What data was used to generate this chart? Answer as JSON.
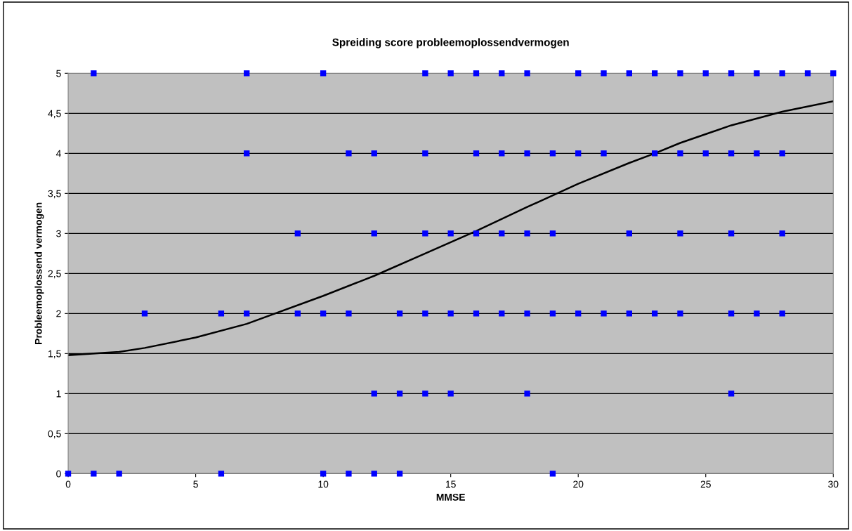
{
  "chart_data": {
    "type": "scatter",
    "title": "Spreiding score probleemoplossendvermogen",
    "xlabel": "MMSE",
    "ylabel": "Probleemoplossend vermogen",
    "xlim": [
      0,
      30
    ],
    "xticks": [
      0,
      5,
      10,
      15,
      20,
      25,
      30
    ],
    "ylim": [
      0,
      5
    ],
    "yticks": [
      0,
      {
        "value": 0.5,
        "label": "0,5"
      },
      1,
      {
        "value": 1.5,
        "label": "1,5"
      },
      2,
      {
        "value": 2.5,
        "label": "2,5"
      },
      3,
      {
        "value": 3.5,
        "label": "3,5"
      },
      4,
      {
        "value": 4.5,
        "label": "4,5"
      },
      5
    ],
    "grid": "y",
    "marker": "square",
    "series": [
      {
        "type": "scatter",
        "color": "#0000ff",
        "x": [
          1,
          7,
          10,
          14,
          15,
          16,
          17,
          18,
          20,
          21,
          22,
          23,
          24,
          25,
          26,
          27,
          28,
          29,
          30,
          7,
          11,
          12,
          14,
          16,
          17,
          18,
          19,
          20,
          21,
          23,
          24,
          25,
          26,
          27,
          28,
          9,
          12,
          14,
          15,
          16,
          17,
          18,
          19,
          22,
          24,
          26,
          28,
          3,
          6,
          7,
          9,
          10,
          11,
          13,
          14,
          15,
          16,
          17,
          18,
          19,
          20,
          21,
          22,
          23,
          24,
          26,
          27,
          28,
          12,
          13,
          14,
          15,
          18,
          26,
          0,
          1,
          2,
          6,
          10,
          11,
          12,
          13,
          19
        ],
        "values": [
          5,
          5,
          5,
          5,
          5,
          5,
          5,
          5,
          5,
          5,
          5,
          5,
          5,
          5,
          5,
          5,
          5,
          5,
          5,
          4,
          4,
          4,
          4,
          4,
          4,
          4,
          4,
          4,
          4,
          4,
          4,
          4,
          4,
          4,
          4,
          3,
          3,
          3,
          3,
          3,
          3,
          3,
          3,
          3,
          3,
          3,
          3,
          2,
          2,
          2,
          2,
          2,
          2,
          2,
          2,
          2,
          2,
          2,
          2,
          2,
          2,
          2,
          2,
          2,
          2,
          2,
          2,
          2,
          1,
          1,
          1,
          1,
          1,
          1,
          0,
          0,
          0,
          0,
          0,
          0,
          0,
          0,
          0
        ]
      },
      {
        "type": "line",
        "color": "#000000",
        "marker": "none",
        "x": [
          0,
          2,
          3,
          5,
          7,
          10,
          12,
          14,
          16,
          18,
          20,
          22,
          23,
          24,
          26,
          28,
          30
        ],
        "values": [
          1.48,
          1.52,
          1.57,
          1.7,
          1.87,
          2.22,
          2.47,
          2.75,
          3.03,
          3.33,
          3.62,
          3.88,
          4.0,
          4.13,
          4.35,
          4.52,
          4.65
        ]
      }
    ]
  }
}
